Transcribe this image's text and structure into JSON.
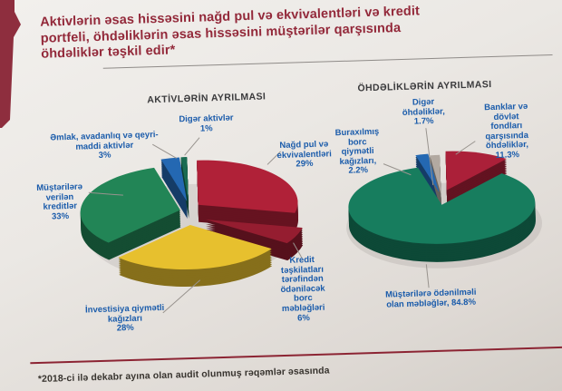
{
  "page": {
    "title": "Aktivlərin əsas hissəsini nağd pul və ekvivalentləri və kredit\nportfeli, öhdəliklərin əsas hissəsini müştərilər qarşısında\nöhdəliklər təşkil edir*",
    "footnote": "*2018-ci ilə dekabr ayına olan audit olunmuş rəqəmlər əsasında",
    "accent_color": "#8c2634"
  },
  "charts": {
    "left": {
      "title": "AKTİVLƏRİN AYRILMASI",
      "callouts": {
        "diger": "Digər aktivlər\n1%",
        "emlak": "Əmlak, avadanlıq və qeyri-\nmaddi aktivlər\n3%",
        "musteriler": "Müştərilərə\nverilən\nkreditlər\n33%",
        "nagd": "Nağd pul və\nekvivalentləri\n29%",
        "kredit": "Kredit\ntəşkilatları\ntərəfindən\nödəniləcək\nborc\nməbləğləri\n6%",
        "investisiya": "İnvestisiya qiymətli\nkağızları\n28%"
      }
    },
    "right": {
      "title": "ÖHDƏLİKLƏRİN AYRILMASI",
      "callouts": {
        "diger": "Digər\nöhdəliklər,\n1.7%",
        "banklar": "Banklar və dövlət\nfondları\nqarşısında\nöhdəliklər, 11.3%",
        "buraxilmis": "Buraxılmış\nborc\nqiymətli\nkağızları,\n2.2%",
        "musteriler": "Müştərilərə ödənilməli\nolan məbləğlər, 84.8%"
      }
    }
  },
  "chart_data": [
    {
      "type": "pie",
      "title": "AKTİVLƏRİN AYRILMASI",
      "unit": "%",
      "legend": false,
      "style": "3d-exploded",
      "slices": [
        {
          "label": "Nağd pul və ekvivalentləri",
          "value": 29,
          "color": "#b02138"
        },
        {
          "label": "Kredit təşkilatları tərəfindən ödəniləcək borc məbləğləri",
          "value": 6,
          "color": "#951d30"
        },
        {
          "label": "İnvestisiya qiymətli kağızları",
          "value": 28,
          "color": "#e7c02e"
        },
        {
          "label": "Müştərilərə verilən kreditlər",
          "value": 33,
          "color": "#228556"
        },
        {
          "label": "Əmlak, avadanlıq və qeyri-maddi aktivlər",
          "value": 3,
          "color": "#2468b2"
        },
        {
          "label": "Digər aktivlər",
          "value": 1,
          "color": "#1a6b52"
        }
      ]
    },
    {
      "type": "pie",
      "title": "ÖHDƏLİKLƏRİN AYRILMASI",
      "unit": "%",
      "legend": false,
      "style": "3d-exploded",
      "slices": [
        {
          "label": "Banklar və dövlət fondları qarşısında öhdəliklər",
          "value": 11.3,
          "color": "#ab2039"
        },
        {
          "label": "Müştərilərə ödənilməli olan məbləğlər",
          "value": 84.8,
          "color": "#177d5e"
        },
        {
          "label": "Buraxılmış borc qiymətli kağızları",
          "value": 2.2,
          "color": "#2468b2"
        },
        {
          "label": "Digər öhdəliklər",
          "value": 1.7,
          "color": "#b2a9a1"
        }
      ]
    }
  ]
}
